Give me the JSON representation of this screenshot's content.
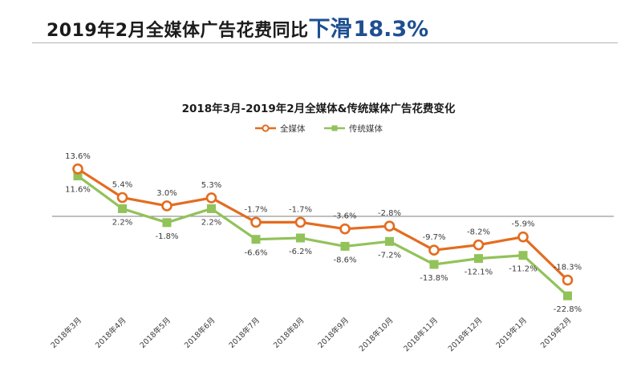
{
  "header": {
    "title_main": "2019年2月全媒体广告花费同比",
    "title_emphasis": "下滑",
    "title_value": "18.3%"
  },
  "colors": {
    "all_media": "#e46c1f",
    "traditional_media": "#92c25a",
    "heading_accent": "#1d4f91",
    "baseline": "#7f7f7f"
  },
  "chart_data": {
    "type": "line",
    "title": "2018年3月-2019年2月全媒体&传统媒体广告花费变化",
    "categories": [
      "2018年3月",
      "2018年4月",
      "2018年5月",
      "2018年6月",
      "2018年7月",
      "2018年8月",
      "2018年9月",
      "2018年10月",
      "2018年11月",
      "2018年12月",
      "2019年1月",
      "2019年2月"
    ],
    "series": [
      {
        "name": "全媒体",
        "color": "#e46c1f",
        "marker": "hollow-circle",
        "values": [
          13.6,
          5.4,
          3.0,
          5.3,
          -1.7,
          -1.7,
          -3.6,
          -2.8,
          -9.7,
          -8.2,
          -5.9,
          -18.3
        ],
        "labels": [
          "13.6%",
          "5.4%",
          "3.0%",
          "5.3%",
          "-1.7%",
          "-1.7%",
          "-3.6%",
          "-2.8%",
          "-9.7%",
          "-8.2%",
          "-5.9%",
          "-18.3%"
        ]
      },
      {
        "name": "传统媒体",
        "color": "#92c25a",
        "marker": "square",
        "values": [
          11.6,
          2.2,
          -1.8,
          2.2,
          -6.6,
          -6.2,
          -8.6,
          -7.2,
          -13.8,
          -12.1,
          -11.2,
          -22.8
        ],
        "labels": [
          "11.6%",
          "2.2%",
          "-1.8%",
          "2.2%",
          "-6.6%",
          "-6.2%",
          "-8.6%",
          "-7.2%",
          "-13.8%",
          "-12.1%",
          "-11.2%",
          "-22.8%"
        ]
      }
    ],
    "legend": "top-center",
    "zero_line": true,
    "grid": false,
    "y_axis_visible": false
  }
}
